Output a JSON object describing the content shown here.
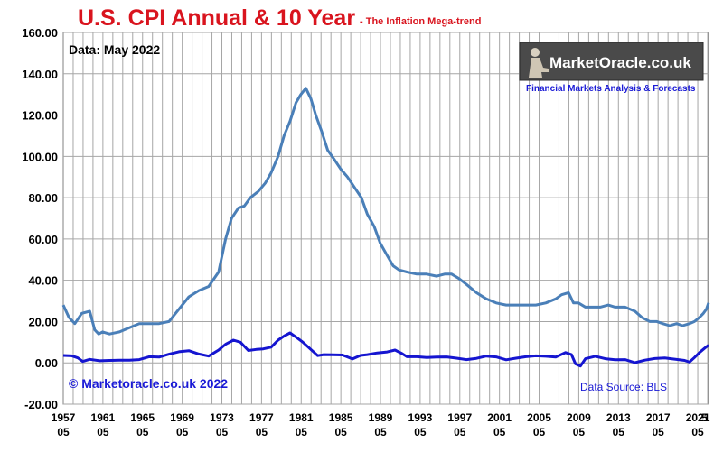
{
  "chart_data": {
    "type": "line",
    "title": "U.S. CPI Annual & 10 Year",
    "subtitle": "- The Inflation Mega-trend",
    "note": "Data: May 2022",
    "copyright": "© Marketoracle.co.uk 2022",
    "source": "Data Source: BLS",
    "xlabel": "",
    "ylabel": "",
    "ylim": [
      -20,
      160
    ],
    "yticks": [
      "160.00",
      "140.00",
      "120.00",
      "100.00",
      "80.00",
      "60.00",
      "40.00",
      "20.00",
      "0.00",
      "-20.00"
    ],
    "xlim": [
      1957.33,
      2022.42
    ],
    "xticks": [
      {
        "top": "1957",
        "bottom": "05"
      },
      {
        "top": "1961",
        "bottom": "05"
      },
      {
        "top": "1965",
        "bottom": "05"
      },
      {
        "top": "1969",
        "bottom": "05"
      },
      {
        "top": "1973",
        "bottom": "05"
      },
      {
        "top": "1977",
        "bottom": "05"
      },
      {
        "top": "1981",
        "bottom": "05"
      },
      {
        "top": "1985",
        "bottom": "05"
      },
      {
        "top": "1989",
        "bottom": "05"
      },
      {
        "top": "1993",
        "bottom": "05"
      },
      {
        "top": "1997",
        "bottom": "05"
      },
      {
        "top": "2001",
        "bottom": "05"
      },
      {
        "top": "2005",
        "bottom": "05"
      },
      {
        "top": "2009",
        "bottom": "05"
      },
      {
        "top": "2013",
        "bottom": "05"
      },
      {
        "top": "2017",
        "bottom": "05"
      },
      {
        "top": "2021",
        "bottom": "05"
      },
      {
        "top": "5",
        "bottom": ""
      }
    ],
    "grid": true,
    "colors": {
      "ten_year": "#4a7fb8",
      "annual": "#1515d0",
      "title": "#d9141e",
      "grid": "#a6a6a6"
    },
    "series": [
      {
        "id": "ten_year",
        "x": [
          1957.33,
          1957.9,
          1958.5,
          1959.2,
          1960.0,
          1960.5,
          1960.9,
          1961.3,
          1962.0,
          1963.0,
          1964.0,
          1965.0,
          1966.0,
          1967.0,
          1968.0,
          1969.0,
          1970.0,
          1971.0,
          1972.0,
          1973.0,
          1973.7,
          1974.3,
          1975.0,
          1975.6,
          1976.2,
          1977.0,
          1977.7,
          1978.3,
          1979.0,
          1979.6,
          1980.2,
          1980.8,
          1981.3,
          1981.8,
          1982.3,
          1982.8,
          1983.4,
          1984.0,
          1984.6,
          1985.3,
          1986.0,
          1986.7,
          1987.4,
          1988.0,
          1988.7,
          1989.3,
          1990.0,
          1990.6,
          1991.2,
          1992.0,
          1993.0,
          1994.0,
          1995.0,
          1995.8,
          1996.5,
          1997.2,
          1998.0,
          1999.0,
          2000.0,
          2001.0,
          2002.0,
          2003.0,
          2004.0,
          2005.0,
          2006.0,
          2007.0,
          2007.6,
          2008.3,
          2008.8,
          2009.3,
          2010.0,
          2010.8,
          2011.5,
          2012.3,
          2013.0,
          2014.0,
          2015.0,
          2015.7,
          2016.5,
          2017.2,
          2017.8,
          2018.5,
          2019.2,
          2019.8,
          2020.5,
          2021.0,
          2021.5,
          2021.9,
          2022.2,
          2022.42
        ],
        "y": [
          28,
          22,
          19,
          24,
          25,
          16,
          14,
          15,
          14,
          15,
          17,
          19,
          19,
          19,
          20,
          26,
          32,
          35,
          37,
          44,
          60,
          70,
          75,
          76,
          80,
          83,
          87,
          92,
          100,
          110,
          117,
          126,
          130,
          133,
          128,
          120,
          112,
          103,
          99,
          94,
          90,
          85,
          80,
          72,
          66,
          58,
          52,
          47,
          45,
          44,
          43,
          43,
          42,
          43,
          43,
          41,
          38,
          34,
          31,
          29,
          28,
          28,
          28,
          28,
          29,
          31,
          33,
          34,
          29,
          29,
          27,
          27,
          27,
          28,
          27,
          27,
          25,
          22,
          20,
          20,
          19,
          18,
          19,
          18,
          19,
          20,
          22,
          24,
          26,
          29
        ]
      },
      {
        "id": "annual",
        "x": [
          1957.33,
          1958.2,
          1958.8,
          1959.3,
          1960.0,
          1961.0,
          1962.0,
          1963.0,
          1964.0,
          1965.0,
          1966.0,
          1967.0,
          1968.0,
          1969.0,
          1970.0,
          1971.0,
          1972.0,
          1973.0,
          1973.7,
          1974.5,
          1975.2,
          1976.0,
          1976.8,
          1977.5,
          1978.3,
          1979.0,
          1979.6,
          1980.2,
          1980.8,
          1981.5,
          1982.3,
          1983.0,
          1983.6,
          1984.5,
          1985.5,
          1986.5,
          1987.3,
          1988.0,
          1989.0,
          1990.0,
          1990.8,
          1991.5,
          1992.0,
          1993.0,
          1994.0,
          1995.0,
          1996.0,
          1997.0,
          1998.0,
          1999.0,
          2000.0,
          2001.0,
          2002.0,
          2003.0,
          2004.0,
          2005.0,
          2006.0,
          2007.0,
          2008.0,
          2008.6,
          2009.0,
          2009.5,
          2010.0,
          2011.0,
          2012.0,
          2013.0,
          2014.0,
          2015.0,
          2016.0,
          2017.0,
          2018.0,
          2019.0,
          2020.0,
          2020.5,
          2021.0,
          2021.5,
          2022.0,
          2022.42
        ],
        "y": [
          3.6,
          3.4,
          2.4,
          0.7,
          1.7,
          1.0,
          1.2,
          1.3,
          1.3,
          1.6,
          3.0,
          2.8,
          4.2,
          5.4,
          5.9,
          4.3,
          3.3,
          6.2,
          9.0,
          11.0,
          10.0,
          6.0,
          6.5,
          6.8,
          7.6,
          11.0,
          13.0,
          14.5,
          12.5,
          10.0,
          6.5,
          3.5,
          4.0,
          3.9,
          3.8,
          1.9,
          3.6,
          4.0,
          4.8,
          5.3,
          6.2,
          4.5,
          3.0,
          3.0,
          2.6,
          2.8,
          2.9,
          2.3,
          1.6,
          2.2,
          3.3,
          2.9,
          1.5,
          2.3,
          3.0,
          3.4,
          3.2,
          2.8,
          5.0,
          4.0,
          -0.5,
          -1.5,
          2.0,
          3.2,
          2.0,
          1.5,
          1.6,
          0.1,
          1.3,
          2.1,
          2.4,
          1.8,
          1.2,
          0.4,
          2.6,
          5.0,
          7.0,
          8.6
        ]
      }
    ]
  },
  "logo": {
    "name": "MarketOracle.co.uk",
    "tagline": "Financial Markets Analysis & Forecasts"
  }
}
